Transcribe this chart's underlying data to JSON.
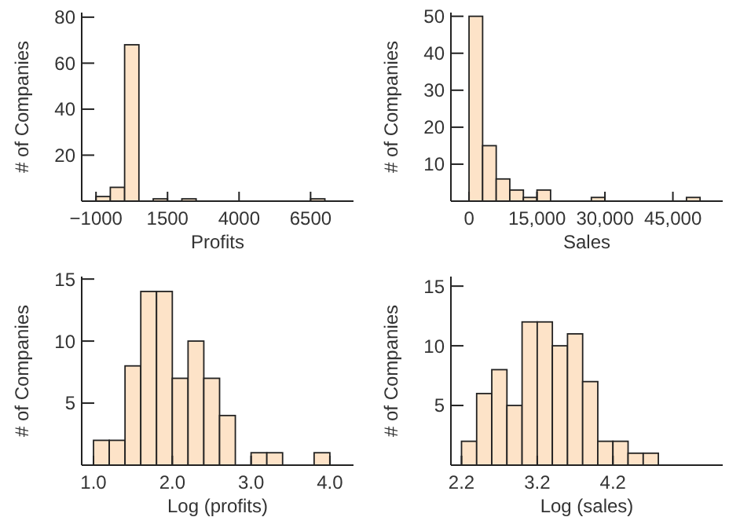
{
  "chart_data": [
    {
      "type": "histogram",
      "xlabel": "Profits",
      "ylabel": "# of Companies",
      "color": "#fde3c8",
      "bins": [
        -1000,
        -500,
        0,
        500,
        1000,
        1500,
        2000,
        2500,
        3000,
        3500,
        4000,
        4500,
        5000,
        5500,
        6000,
        6500,
        7000
      ],
      "values": [
        2,
        6,
        68,
        0,
        1,
        0,
        1,
        0,
        0,
        0,
        0,
        0,
        0,
        0,
        0,
        1
      ],
      "xlim": [
        -1500,
        8000
      ],
      "xticks": [
        {
          "value": -1000,
          "label": "−1000"
        },
        1500,
        4000,
        6500
      ],
      "ylim": [
        0,
        82
      ],
      "yticks": [
        20,
        40,
        60,
        80
      ]
    },
    {
      "type": "histogram",
      "xlabel": "Sales",
      "ylabel": "# of Companies",
      "color": "#fde3c8",
      "bins": [
        0,
        3000,
        6000,
        9000,
        12000,
        15000,
        18000,
        21000,
        24000,
        27000,
        30000,
        33000,
        36000,
        39000,
        42000,
        45000,
        48000,
        51000
      ],
      "values": [
        50,
        15,
        6,
        3,
        1,
        3,
        0,
        0,
        0,
        1,
        0,
        0,
        0,
        0,
        0,
        0,
        1
      ],
      "xlim": [
        -4000,
        56000
      ],
      "xticks": [
        0,
        {
          "value": 15000,
          "label": "15,000"
        },
        {
          "value": 30000,
          "label": "30,000"
        },
        {
          "value": 45000,
          "label": "45,000"
        }
      ],
      "ylim": [
        0,
        51
      ],
      "yticks": [
        10,
        20,
        30,
        40,
        50
      ]
    },
    {
      "type": "histogram",
      "xlabel": "Log (profits)",
      "ylabel": "# of Companies",
      "color": "#fde3c8",
      "bins": [
        1.0,
        1.2,
        1.4,
        1.6,
        1.8,
        2.0,
        2.2,
        2.4,
        2.6,
        2.8,
        3.0,
        3.2,
        3.4,
        3.6,
        3.8,
        4.0
      ],
      "values": [
        2,
        2,
        8,
        14,
        14,
        7,
        10,
        7,
        4,
        0,
        1,
        1,
        0,
        0,
        1
      ],
      "xlim": [
        0.85,
        4.3
      ],
      "xticks": [
        {
          "value": 1,
          "label": "1.0"
        },
        {
          "value": 2,
          "label": "2.0"
        },
        {
          "value": 3,
          "label": "3.0"
        },
        {
          "value": 4,
          "label": "4.0"
        }
      ],
      "ylim": [
        0,
        15.2
      ],
      "yticks": [
        5,
        10,
        15
      ]
    },
    {
      "type": "histogram",
      "xlabel": "Log (sales)",
      "ylabel": "# of Companies",
      "color": "#fde3c8",
      "bins": [
        2.2,
        2.4,
        2.6,
        2.8,
        3.0,
        3.2,
        3.4,
        3.6,
        3.8,
        4.0,
        4.2,
        4.4,
        4.6,
        4.8
      ],
      "values": [
        2,
        6,
        8,
        5,
        12,
        12,
        10,
        11,
        7,
        2,
        2,
        1,
        1
      ],
      "xlim": [
        2.06,
        5.65
      ],
      "xticks": [
        2.2,
        3.2,
        4.2
      ],
      "ylim": [
        0,
        15.8
      ],
      "yticks": [
        5,
        10,
        15
      ]
    }
  ]
}
